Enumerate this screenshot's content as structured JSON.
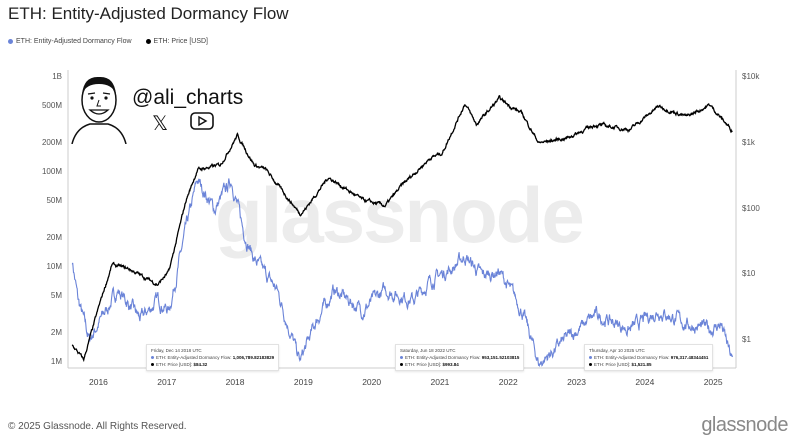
{
  "title": "ETH: Entity-Adjusted Dormancy Flow",
  "legend": [
    {
      "label": "ETH: Entity-Adjusted Dormancy Flow",
      "color": "#6b84d8"
    },
    {
      "label": "ETH: Price [USD]",
      "color": "#000000"
    }
  ],
  "handle": "@ali_charts",
  "watermark": "glassnode",
  "footer": "© 2025 Glassnode. All Rights Reserved.",
  "brand": "glassnode",
  "tooltips": [
    {
      "date": "Friday, Dec 14 2018 UTC",
      "flow_label": "ETH: Entity-Adjusted Dormancy Flow:",
      "flow": "1,006,789.82183829",
      "price_label": "ETH: Price [USD]:",
      "price": "$84.32"
    },
    {
      "date": "Saturday, Jun 18 2022 UTC",
      "flow_label": "ETH: Entity-Adjusted Dormancy Flow:",
      "flow": "953,151.52103815",
      "price_label": "ETH: Price [USD]:",
      "price": "$993.84"
    },
    {
      "date": "Thursday, Apr 10 2025 UTC",
      "flow_label": "ETH: Entity-Adjusted Dormancy Flow:",
      "flow": "976,317.48344451",
      "price_label": "ETH: Price [USD]:",
      "price": "$1,521.85"
    }
  ],
  "chart_data": {
    "type": "line",
    "title": "ETH: Entity-Adjusted Dormancy Flow",
    "x_ticks": [
      "2016",
      "2017",
      "2018",
      "2019",
      "2020",
      "2021",
      "2022",
      "2023",
      "2024",
      "2025"
    ],
    "y_left": {
      "scale": "log",
      "range": [
        1000000,
        1000000000
      ],
      "ticks": [
        "1B",
        "500M",
        "200M",
        "100M",
        "50M",
        "20M",
        "10M",
        "5M",
        "2M",
        "1M"
      ]
    },
    "y_right": {
      "scale": "log",
      "range": [
        0.46,
        10000
      ],
      "ticks": [
        "$10k",
        "$1k",
        "$100",
        "$10",
        "$1"
      ]
    },
    "grid": false,
    "legend_placement": "top-left",
    "series": [
      {
        "name": "ETH: Entity-Adjusted Dormancy Flow",
        "axis": "left",
        "color": "#6b84d8",
        "points": [
          [
            "2015-08",
            11800000
          ],
          [
            "2015-09",
            4500000
          ],
          [
            "2015-11",
            1700000
          ],
          [
            "2016-01",
            2800000
          ],
          [
            "2016-04",
            5700000
          ],
          [
            "2016-08",
            2800000
          ],
          [
            "2016-11",
            4500000
          ],
          [
            "2017-01",
            3500000
          ],
          [
            "2017-04",
            25000000
          ],
          [
            "2017-06",
            82000000
          ],
          [
            "2017-09",
            40000000
          ],
          [
            "2017-12",
            82000000
          ],
          [
            "2018-02",
            25000000
          ],
          [
            "2018-04",
            12000000
          ],
          [
            "2018-08",
            5700000
          ],
          [
            "2018-12",
            1000000
          ],
          [
            "2019-03",
            2800000
          ],
          [
            "2019-06",
            5700000
          ],
          [
            "2019-11",
            3500000
          ],
          [
            "2020-03",
            5700000
          ],
          [
            "2020-08",
            4500000
          ],
          [
            "2020-11",
            7200000
          ],
          [
            "2021-03",
            10000000
          ],
          [
            "2021-05",
            13000000
          ],
          [
            "2021-08",
            8000000
          ],
          [
            "2021-11",
            9000000
          ],
          [
            "2022-03",
            3500000
          ],
          [
            "2022-06",
            950000
          ],
          [
            "2022-11",
            1800000
          ],
          [
            "2023-04",
            3100000
          ],
          [
            "2023-10",
            2200000
          ],
          [
            "2024-03",
            3500000
          ],
          [
            "2024-08",
            2500000
          ],
          [
            "2024-12",
            2200000
          ],
          [
            "2025-02",
            2500000
          ],
          [
            "2025-04",
            976000
          ]
        ]
      },
      {
        "name": "ETH: Price [USD]",
        "axis": "right",
        "color": "#000000",
        "points": [
          [
            "2015-08",
            0.84
          ],
          [
            "2015-10",
            0.5
          ],
          [
            "2016-01",
            4
          ],
          [
            "2016-03",
            14
          ],
          [
            "2016-06",
            12
          ],
          [
            "2016-11",
            7
          ],
          [
            "2017-01",
            11
          ],
          [
            "2017-04",
            135
          ],
          [
            "2017-06",
            390
          ],
          [
            "2017-10",
            460
          ],
          [
            "2018-01",
            1300
          ],
          [
            "2018-04",
            460
          ],
          [
            "2018-06",
            390
          ],
          [
            "2018-12",
            84
          ],
          [
            "2019-01",
            100
          ],
          [
            "2019-05",
            300
          ],
          [
            "2019-11",
            135
          ],
          [
            "2020-03",
            110
          ],
          [
            "2020-06",
            230
          ],
          [
            "2020-11",
            600
          ],
          [
            "2021-01",
            700
          ],
          [
            "2021-05",
            4000
          ],
          [
            "2021-07",
            1900
          ],
          [
            "2021-11",
            4700
          ],
          [
            "2022-03",
            2800
          ],
          [
            "2022-06",
            994
          ],
          [
            "2022-11",
            1200
          ],
          [
            "2023-04",
            1900
          ],
          [
            "2023-10",
            1600
          ],
          [
            "2024-03",
            3600
          ],
          [
            "2024-08",
            2500
          ],
          [
            "2024-12",
            3800
          ],
          [
            "2025-04",
            1522
          ]
        ]
      }
    ]
  }
}
